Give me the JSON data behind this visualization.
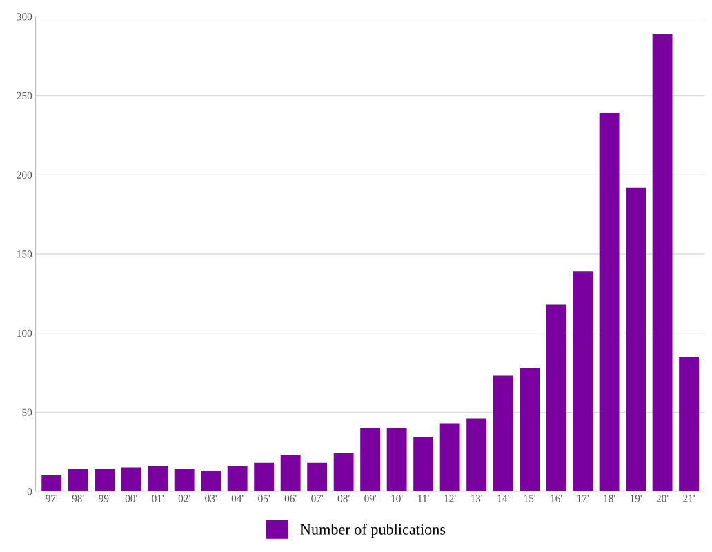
{
  "chart_data": {
    "type": "bar",
    "categories": [
      "97'",
      "98'",
      "99'",
      "00'",
      "01'",
      "02'",
      "03'",
      "04'",
      "05'",
      "06'",
      "07'",
      "08'",
      "09'",
      "10'",
      "11'",
      "12'",
      "13'",
      "14'",
      "15'",
      "16'",
      "17'",
      "18'",
      "19'",
      "20'",
      "21'"
    ],
    "series": [
      {
        "name": "Number of publications",
        "color": "#7b00a0",
        "values": [
          10,
          14,
          14,
          15,
          16,
          14,
          13,
          16,
          18,
          23,
          18,
          24,
          40,
          40,
          34,
          43,
          46,
          73,
          78,
          118,
          139,
          239,
          192,
          289,
          85
        ]
      }
    ],
    "ylim": [
      0,
      300
    ],
    "yticks": [
      0,
      50,
      100,
      150,
      200,
      250,
      300
    ],
    "grid": "y",
    "legend": "bottom"
  }
}
